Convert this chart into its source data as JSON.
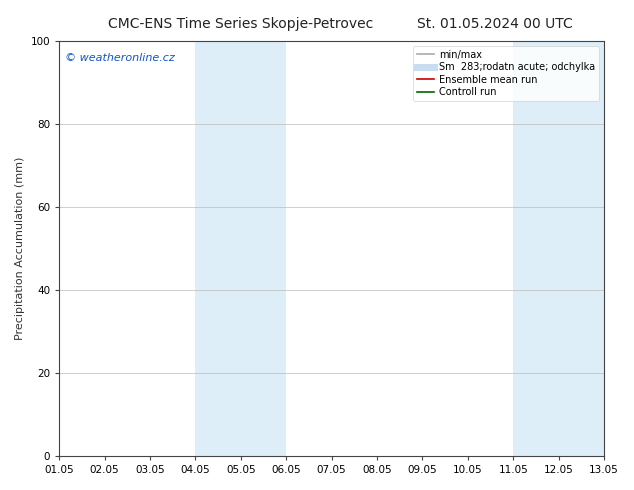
{
  "title_left": "CMC-ENS Time Series Skopje-Petrovec",
  "title_right": "St. 01.05.2024 00 UTC",
  "ylabel": "Precipitation Accumulation (mm)",
  "xlim_start": 0,
  "xlim_end": 12,
  "ylim": [
    0,
    100
  ],
  "xtick_labels": [
    "01.05",
    "02.05",
    "03.05",
    "04.05",
    "05.05",
    "06.05",
    "07.05",
    "08.05",
    "09.05",
    "10.05",
    "11.05",
    "12.05",
    "13.05"
  ],
  "ytick_values": [
    0,
    20,
    40,
    60,
    80,
    100
  ],
  "shaded_bands": [
    {
      "x_start": 3,
      "x_end": 5,
      "color": "#ddeef8"
    },
    {
      "x_start": 10,
      "x_end": 12,
      "color": "#ddeef8"
    }
  ],
  "watermark_text": "© weatheronline.cz",
  "watermark_color": "#1155cc",
  "legend_items": [
    {
      "label": "min/max",
      "color": "#aaaaaa",
      "lw": 1.2,
      "ls": "-"
    },
    {
      "label": "Sm  283;rodatn acute; odchylka",
      "color": "#c8ddf0",
      "lw": 5,
      "ls": "-"
    },
    {
      "label": "Ensemble mean run",
      "color": "#cc0000",
      "lw": 1.2,
      "ls": "-"
    },
    {
      "label": "Controll run",
      "color": "#006600",
      "lw": 1.2,
      "ls": "-"
    }
  ],
  "bg_color": "#ffffff",
  "plot_bg_color": "#ffffff",
  "grid_color": "#bbbbbb",
  "spine_color": "#444444",
  "tick_fontsize": 7.5,
  "title_fontsize": 10,
  "ylabel_fontsize": 8,
  "watermark_fontsize": 8
}
